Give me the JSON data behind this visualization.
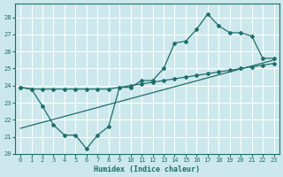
{
  "title": "",
  "xlabel": "Humidex (Indice chaleur)",
  "ylabel": "",
  "bg_color": "#cde8ec",
  "grid_color": "#ffffff",
  "line_color": "#1e6e6a",
  "xlim": [
    -0.5,
    23.5
  ],
  "ylim": [
    20,
    28.8
  ],
  "yticks": [
    20,
    21,
    22,
    23,
    24,
    25,
    26,
    27,
    28
  ],
  "xticks": [
    0,
    1,
    2,
    3,
    4,
    5,
    6,
    7,
    8,
    9,
    10,
    11,
    12,
    13,
    14,
    15,
    16,
    17,
    18,
    19,
    20,
    21,
    22,
    23
  ],
  "flat_x": [
    0,
    1,
    2,
    3,
    4,
    5,
    6,
    7,
    8,
    9,
    10,
    11,
    12,
    13,
    14,
    15,
    16,
    17,
    18,
    19,
    20,
    21,
    22,
    23
  ],
  "flat_y": [
    23.9,
    23.8,
    23.8,
    23.8,
    23.8,
    23.8,
    23.8,
    23.8,
    23.8,
    23.9,
    24.0,
    24.1,
    24.2,
    24.3,
    24.4,
    24.5,
    24.6,
    24.7,
    24.8,
    24.9,
    25.0,
    25.1,
    25.2,
    25.3
  ],
  "jagged_x": [
    0,
    1,
    2,
    3,
    4,
    5,
    6,
    7,
    8,
    9,
    10,
    11,
    12,
    13,
    14,
    15,
    16,
    17,
    18,
    19,
    20,
    21,
    22,
    23
  ],
  "jagged_y": [
    23.9,
    23.8,
    22.8,
    21.7,
    21.1,
    21.1,
    20.3,
    21.1,
    21.6,
    23.9,
    23.9,
    24.3,
    24.3,
    25.0,
    26.5,
    26.6,
    27.3,
    28.2,
    27.5,
    27.1,
    27.1,
    26.9,
    25.6,
    25.6
  ],
  "trend_x": [
    0,
    23
  ],
  "trend_y": [
    21.5,
    25.5
  ]
}
